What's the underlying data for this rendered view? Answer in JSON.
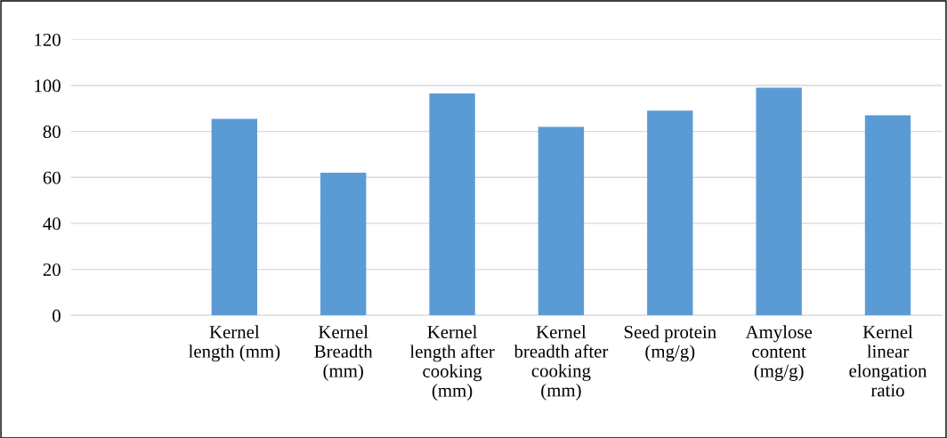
{
  "chart_data": {
    "type": "bar",
    "categories": [
      null,
      "Kernel\nlength (mm)",
      "Kernel\nBreadth\n(mm)",
      "Kernel\nlength after\ncooking\n(mm)",
      "Kernel\nbreadth after\ncooking\n(mm)",
      "Seed protein\n(mg/g)",
      "Amylose\ncontent\n(mg/g)",
      "Kernel\nlinear\nelongation\nratio"
    ],
    "values": [
      null,
      85.5,
      62,
      96.5,
      82,
      89,
      99,
      87
    ],
    "color": "#5b9bd5",
    "ylim": [
      0,
      120
    ],
    "yticks": [
      0,
      20,
      40,
      60,
      80,
      100,
      120
    ],
    "grid": "y"
  }
}
